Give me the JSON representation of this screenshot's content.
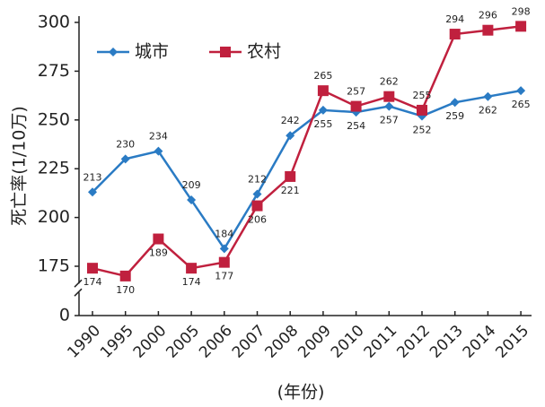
{
  "chart_data": {
    "type": "line",
    "y_label": "死亡率(1/10万)",
    "x_label": "(年份)",
    "categories": [
      "1990",
      "1995",
      "2000",
      "2005",
      "2006",
      "2007",
      "2008",
      "2009",
      "2010",
      "2011",
      "2012",
      "2013",
      "2014",
      "2015"
    ],
    "series": [
      {
        "name": "城市",
        "color": "#2a7bc4",
        "marker": "diamond",
        "values": [
          213,
          230,
          234,
          209,
          184,
          212,
          242,
          255,
          254,
          257,
          252,
          259,
          262,
          265
        ]
      },
      {
        "name": "农村",
        "color": "#c0203e",
        "marker": "square",
        "values": [
          174,
          170,
          189,
          174,
          177,
          206,
          221,
          265,
          257,
          262,
          255,
          294,
          296,
          298
        ]
      }
    ],
    "ylim": [
      0,
      300
    ],
    "yticks": [
      0,
      175,
      200,
      225,
      250,
      275,
      300
    ],
    "axis_break": true,
    "legend": "top-left"
  }
}
